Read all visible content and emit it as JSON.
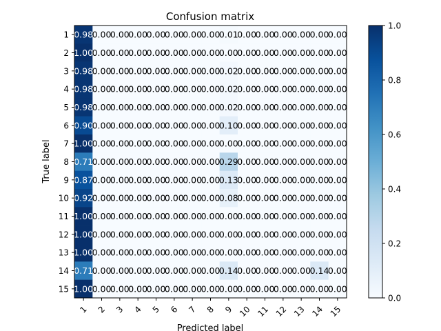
{
  "chart_data": {
    "type": "heatmap",
    "title": "Confusion matrix",
    "xlabel": "Predicted label",
    "ylabel": "True label",
    "x_categories": [
      "1",
      "2",
      "3",
      "4",
      "5",
      "6",
      "7",
      "8",
      "9",
      "10",
      "11",
      "12",
      "13",
      "14",
      "15"
    ],
    "y_categories": [
      "1",
      "2",
      "3",
      "4",
      "5",
      "6",
      "7",
      "8",
      "9",
      "10",
      "11",
      "12",
      "13",
      "14",
      "15"
    ],
    "matrix": [
      [
        0.98,
        0,
        0,
        0,
        0,
        0,
        0,
        0,
        0.01,
        0,
        0,
        0,
        0,
        0,
        0
      ],
      [
        1.0,
        0,
        0,
        0,
        0,
        0,
        0,
        0,
        0.0,
        0,
        0,
        0,
        0,
        0,
        0
      ],
      [
        0.98,
        0,
        0,
        0,
        0,
        0,
        0,
        0,
        0.02,
        0,
        0,
        0,
        0,
        0,
        0
      ],
      [
        0.98,
        0,
        0,
        0,
        0,
        0,
        0,
        0,
        0.02,
        0,
        0,
        0,
        0,
        0,
        0
      ],
      [
        0.98,
        0,
        0,
        0,
        0,
        0,
        0,
        0,
        0.02,
        0,
        0,
        0,
        0,
        0,
        0
      ],
      [
        0.9,
        0,
        0,
        0,
        0,
        0,
        0,
        0,
        0.1,
        0,
        0,
        0,
        0,
        0,
        0
      ],
      [
        1.0,
        0,
        0,
        0,
        0,
        0,
        0,
        0,
        0.0,
        0,
        0,
        0,
        0,
        0,
        0
      ],
      [
        0.71,
        0,
        0,
        0,
        0,
        0,
        0,
        0,
        0.29,
        0,
        0,
        0,
        0,
        0,
        0
      ],
      [
        0.87,
        0,
        0,
        0,
        0,
        0,
        0,
        0,
        0.13,
        0,
        0,
        0,
        0,
        0,
        0
      ],
      [
        0.92,
        0,
        0,
        0,
        0,
        0,
        0,
        0,
        0.08,
        0,
        0,
        0,
        0,
        0,
        0
      ],
      [
        1.0,
        0,
        0,
        0,
        0,
        0,
        0,
        0,
        0.0,
        0,
        0,
        0,
        0,
        0,
        0
      ],
      [
        1.0,
        0,
        0,
        0,
        0,
        0,
        0,
        0,
        0.0,
        0,
        0,
        0,
        0,
        0,
        0
      ],
      [
        1.0,
        0,
        0,
        0,
        0,
        0,
        0,
        0,
        0.0,
        0,
        0,
        0,
        0,
        0,
        0
      ],
      [
        0.71,
        0,
        0,
        0,
        0,
        0,
        0,
        0,
        0.14,
        0,
        0,
        0,
        0,
        0.14,
        0
      ],
      [
        1.0,
        0,
        0,
        0,
        0,
        0,
        0,
        0,
        0.0,
        0,
        0,
        0,
        0,
        0,
        0
      ]
    ],
    "value_format": "0.00",
    "colormap": "Blues",
    "color_low": "#f7fbff",
    "color_high": "#08306b",
    "colorbar": {
      "range": [
        0.0,
        1.0
      ],
      "ticks": [
        "0.0",
        "0.2",
        "0.4",
        "0.6",
        "0.8",
        "1.0"
      ]
    },
    "text_color_dark_cells": "#ffffff",
    "text_color_light_cells": "#000000"
  }
}
